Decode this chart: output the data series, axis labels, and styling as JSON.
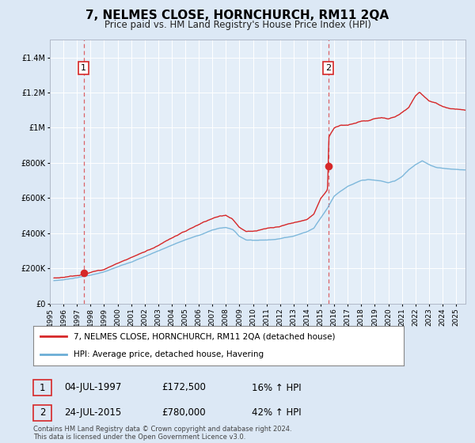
{
  "title": "7, NELMES CLOSE, HORNCHURCH, RM11 2QA",
  "subtitle": "Price paid vs. HM Land Registry's House Price Index (HPI)",
  "legend_line1": "7, NELMES CLOSE, HORNCHURCH, RM11 2QA (detached house)",
  "legend_line2": "HPI: Average price, detached house, Havering",
  "annotation1_label": "1",
  "annotation1_date": "04-JUL-1997",
  "annotation1_price": 172500,
  "annotation2_label": "2",
  "annotation2_date": "24-JUL-2015",
  "annotation2_price": 780000,
  "ann1_extra": "16% ↑ HPI",
  "ann2_extra": "42% ↑ HPI",
  "footer": "Contains HM Land Registry data © Crown copyright and database right 2024.\nThis data is licensed under the Open Government Licence v3.0.",
  "hpi_color": "#6baed6",
  "price_color": "#d62728",
  "bg_color": "#dce8f5",
  "plot_bg": "#e4eef8",
  "ylim": [
    0,
    1500000
  ],
  "xlim_start": 1995.3,
  "xlim_end": 2025.7,
  "sale1_x": 1997.5,
  "sale2_x": 2015.56
}
